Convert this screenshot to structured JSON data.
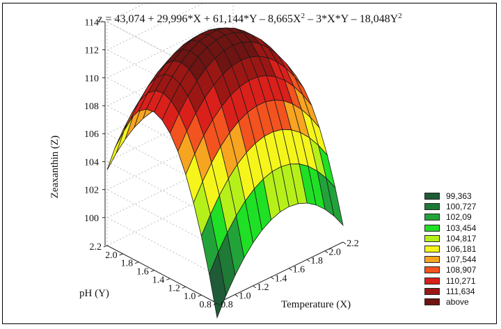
{
  "chart_data": {
    "type": "surface",
    "title": "z = 43,074 + 29,996*X + 61,144*Y – 8,665X² – 3*X*Y – 18,048Y²",
    "title_parts": {
      "main": "z = 43,074 + 29,996*X + 61,144*Y – 8,665X",
      "sup1": "2",
      "mid": " – 3*X*Y – 18,048Y",
      "sup2": "2"
    },
    "xlabel": "Temperature (X)",
    "ylabel": "pH (Y)",
    "zlabel": "Zeaxanthin (Z)",
    "equation": {
      "b0": 43.074,
      "bx": 29.996,
      "by": 61.144,
      "bxx": -8.665,
      "bxy": -3,
      "byy": -18.048
    },
    "xlim": [
      0.8,
      2.2
    ],
    "ylim": [
      0.8,
      2.2
    ],
    "zlim": [
      98,
      114
    ],
    "x_ticks": [
      "0.8",
      "1.0",
      "1.2",
      "1.4",
      "1.6",
      "1.8",
      "2.0",
      "2.2"
    ],
    "y_ticks": [
      "0.8",
      "1.0",
      "1.2",
      "1.4",
      "1.6",
      "1.8",
      "2.0",
      "2.2"
    ],
    "z_ticks": [
      "100",
      "102",
      "104",
      "106",
      "108",
      "110",
      "112",
      "114"
    ],
    "grid": true,
    "legend_position": "bottom-right",
    "legend": [
      {
        "label": "99,363",
        "color": "#1e5b36"
      },
      {
        "label": "100,727",
        "color": "#1f7a35"
      },
      {
        "label": "102,09",
        "color": "#22a33a"
      },
      {
        "label": "103,454",
        "color": "#1fe025"
      },
      {
        "label": "104,817",
        "color": "#b6f01a"
      },
      {
        "label": "106,181",
        "color": "#f5f51c"
      },
      {
        "label": "107,544",
        "color": "#f7a421"
      },
      {
        "label": "108,907",
        "color": "#f2531f"
      },
      {
        "label": "110,271",
        "color": "#d9201b"
      },
      {
        "label": "111,634",
        "color": "#9b1714"
      },
      {
        "label": "above",
        "color": "#6e1412"
      }
    ]
  }
}
